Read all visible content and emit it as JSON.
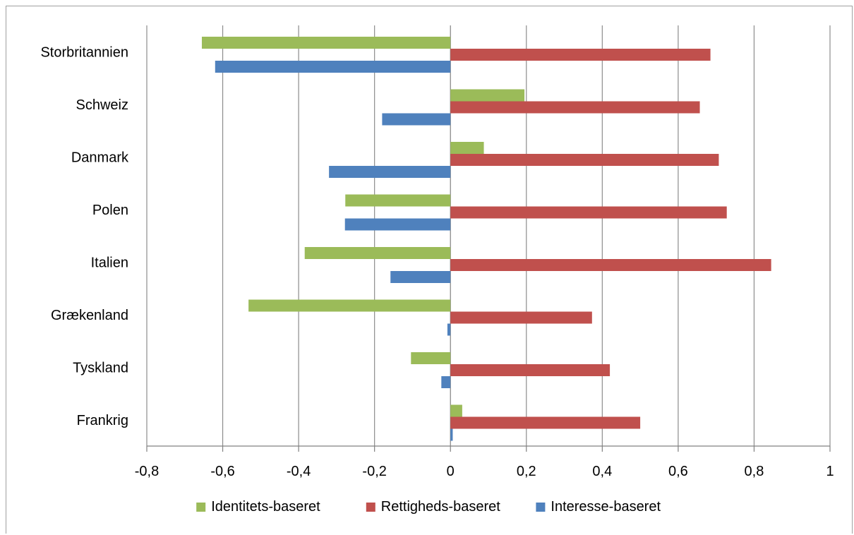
{
  "chart_data": {
    "type": "bar",
    "orientation": "horizontal",
    "categories": [
      "Storbritannien",
      "Schweiz",
      "Danmark",
      "Polen",
      "Italien",
      "Grækenland",
      "Tyskland",
      "Frankrig"
    ],
    "series": [
      {
        "name": "Identitets-baseret",
        "color": "#9BBB59",
        "values": [
          -0.655,
          0.195,
          0.088,
          -0.277,
          -0.384,
          -0.532,
          -0.104,
          0.031
        ]
      },
      {
        "name": "Rettigheds-baseret",
        "color": "#C0504D",
        "values": [
          0.685,
          0.657,
          0.707,
          0.728,
          0.845,
          0.373,
          0.42,
          0.5
        ]
      },
      {
        "name": "Interesse-baseret",
        "color": "#4F81BD",
        "values": [
          -0.62,
          -0.18,
          -0.32,
          -0.278,
          -0.158,
          -0.008,
          -0.024,
          0.006
        ]
      }
    ],
    "xlim": [
      -0.8,
      1
    ],
    "x_ticks": [
      -0.8,
      -0.6,
      -0.4,
      -0.2,
      0,
      0.2,
      0.4,
      0.6,
      0.8,
      1
    ],
    "x_tick_labels": [
      "-0,8",
      "-0,6",
      "-0,4",
      "-0,2",
      "0",
      "0,2",
      "0,4",
      "0,6",
      "0,8",
      "1"
    ],
    "grid": "vertical",
    "legend_position": "bottom",
    "title": "",
    "xlabel": "",
    "ylabel": ""
  }
}
